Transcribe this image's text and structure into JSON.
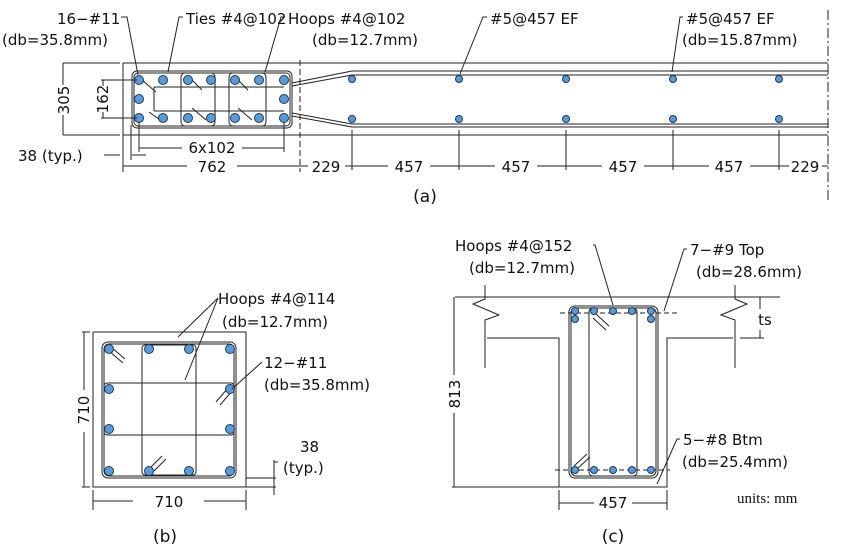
{
  "panel_a": {
    "caption": "(a)",
    "labels": {
      "long_bars": "16−#11",
      "long_bars_db": "(db=35.8mm)",
      "ties": "Ties  #4@102",
      "hoops": "Hoops  #4@102",
      "hoops_db": "(db=12.7mm)",
      "web_bars_1": "#5@457  EF",
      "web_bars_2": "#5@457  EF",
      "web_bars_db": "(db=15.87mm)",
      "cover": "38  (typ.)"
    },
    "dims": {
      "thickness": "305",
      "inner": "162",
      "bar_spacing": "6x102",
      "boundary_length": "762",
      "spacings": [
        "229",
        "457",
        "457",
        "457",
        "457",
        "229"
      ]
    }
  },
  "panel_b": {
    "caption": "(b)",
    "labels": {
      "hoops": "Hoops  #4@114",
      "hoops_db": "(db=12.7mm)",
      "bars": "12−#11",
      "bars_db": "(db=35.8mm)",
      "cover": "38",
      "cover_typ": "(typ.)"
    },
    "dims": {
      "height": "710",
      "width": "710"
    }
  },
  "panel_c": {
    "caption": "(c)",
    "labels": {
      "hoops": "Hoops  #4@152",
      "hoops_db": "(db=12.7mm)",
      "top_bars": "7−#9  Top",
      "top_bars_db": "(db=28.6mm)",
      "bottom_bars": "5−#8  Btm",
      "bottom_bars_db": "(db=25.4mm)",
      "slab": "ts",
      "units": "units: mm"
    },
    "dims": {
      "depth": "813",
      "width": "457"
    }
  },
  "colors": {
    "rebar": "#5b9bd5",
    "line": "#222222"
  }
}
